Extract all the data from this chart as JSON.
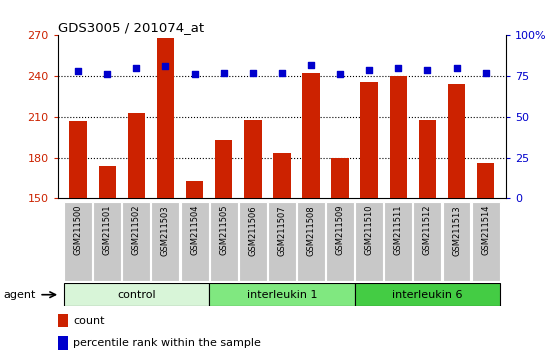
{
  "title": "GDS3005 / 201074_at",
  "samples": [
    "GSM211500",
    "GSM211501",
    "GSM211502",
    "GSM211503",
    "GSM211504",
    "GSM211505",
    "GSM211506",
    "GSM211507",
    "GSM211508",
    "GSM211509",
    "GSM211510",
    "GSM211511",
    "GSM211512",
    "GSM211513",
    "GSM211514"
  ],
  "counts": [
    207,
    174,
    213,
    268,
    163,
    193,
    208,
    183,
    242,
    180,
    236,
    240,
    208,
    234,
    176
  ],
  "percentiles": [
    78,
    76,
    80,
    81,
    76,
    77,
    77,
    77,
    82,
    76,
    79,
    80,
    79,
    80,
    77
  ],
  "groups": [
    {
      "label": "control",
      "start": 0,
      "end": 5,
      "color": "#d8f5d8"
    },
    {
      "label": "interleukin 1",
      "start": 5,
      "end": 10,
      "color": "#80e880"
    },
    {
      "label": "interleukin 6",
      "start": 10,
      "end": 15,
      "color": "#44cc44"
    }
  ],
  "ylim_left": [
    150,
    270
  ],
  "ylim_right": [
    0,
    100
  ],
  "yticks_left": [
    150,
    180,
    210,
    240,
    270
  ],
  "yticks_right": [
    0,
    25,
    50,
    75,
    100
  ],
  "bar_color": "#cc2200",
  "dot_color": "#0000cc",
  "bg_color": "#ffffff",
  "plot_bg": "#ffffff",
  "title_color": "#000000",
  "left_tick_color": "#cc2200",
  "right_tick_color": "#0000cc",
  "xlabel_bg": "#c8c8c8"
}
